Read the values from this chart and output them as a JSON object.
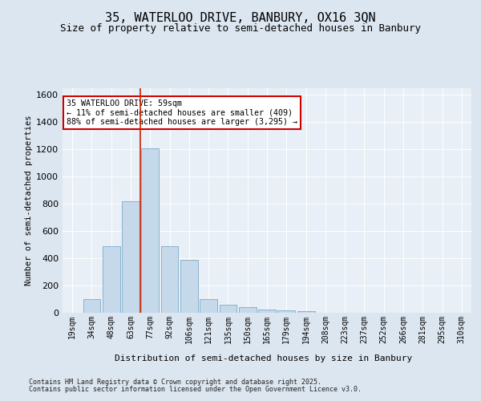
{
  "title1": "35, WATERLOO DRIVE, BANBURY, OX16 3QN",
  "title2": "Size of property relative to semi-detached houses in Banbury",
  "xlabel": "Distribution of semi-detached houses by size in Banbury",
  "ylabel": "Number of semi-detached properties",
  "categories": [
    "19sqm",
    "34sqm",
    "48sqm",
    "63sqm",
    "77sqm",
    "92sqm",
    "106sqm",
    "121sqm",
    "135sqm",
    "150sqm",
    "165sqm",
    "179sqm",
    "194sqm",
    "208sqm",
    "223sqm",
    "237sqm",
    "252sqm",
    "266sqm",
    "281sqm",
    "295sqm",
    "310sqm"
  ],
  "values": [
    0,
    100,
    490,
    820,
    1210,
    490,
    390,
    100,
    60,
    40,
    25,
    15,
    10,
    0,
    0,
    0,
    0,
    0,
    0,
    0,
    0
  ],
  "bar_color": "#c6d9ea",
  "bar_edge_color": "#7aaac8",
  "red_line_x": 3.5,
  "red_line_color": "#cc2200",
  "annotation_title": "35 WATERLOO DRIVE: 59sqm",
  "annotation_line1": "← 11% of semi-detached houses are smaller (409)",
  "annotation_line2": "88% of semi-detached houses are larger (3,295) →",
  "annotation_color": "#cc0000",
  "ylim_max": 1650,
  "yticks": [
    0,
    200,
    400,
    600,
    800,
    1000,
    1200,
    1400,
    1600
  ],
  "footnote1": "Contains HM Land Registry data © Crown copyright and database right 2025.",
  "footnote2": "Contains public sector information licensed under the Open Government Licence v3.0.",
  "bg_color": "#dce6f0",
  "plot_bg_color": "#e8eff6",
  "title1_fontsize": 11,
  "title2_fontsize": 9,
  "axis_fontsize": 7.5,
  "ylabel_fontsize": 7.5,
  "xlabel_fontsize": 8,
  "tick_fontsize": 7,
  "footnote_fontsize": 6
}
